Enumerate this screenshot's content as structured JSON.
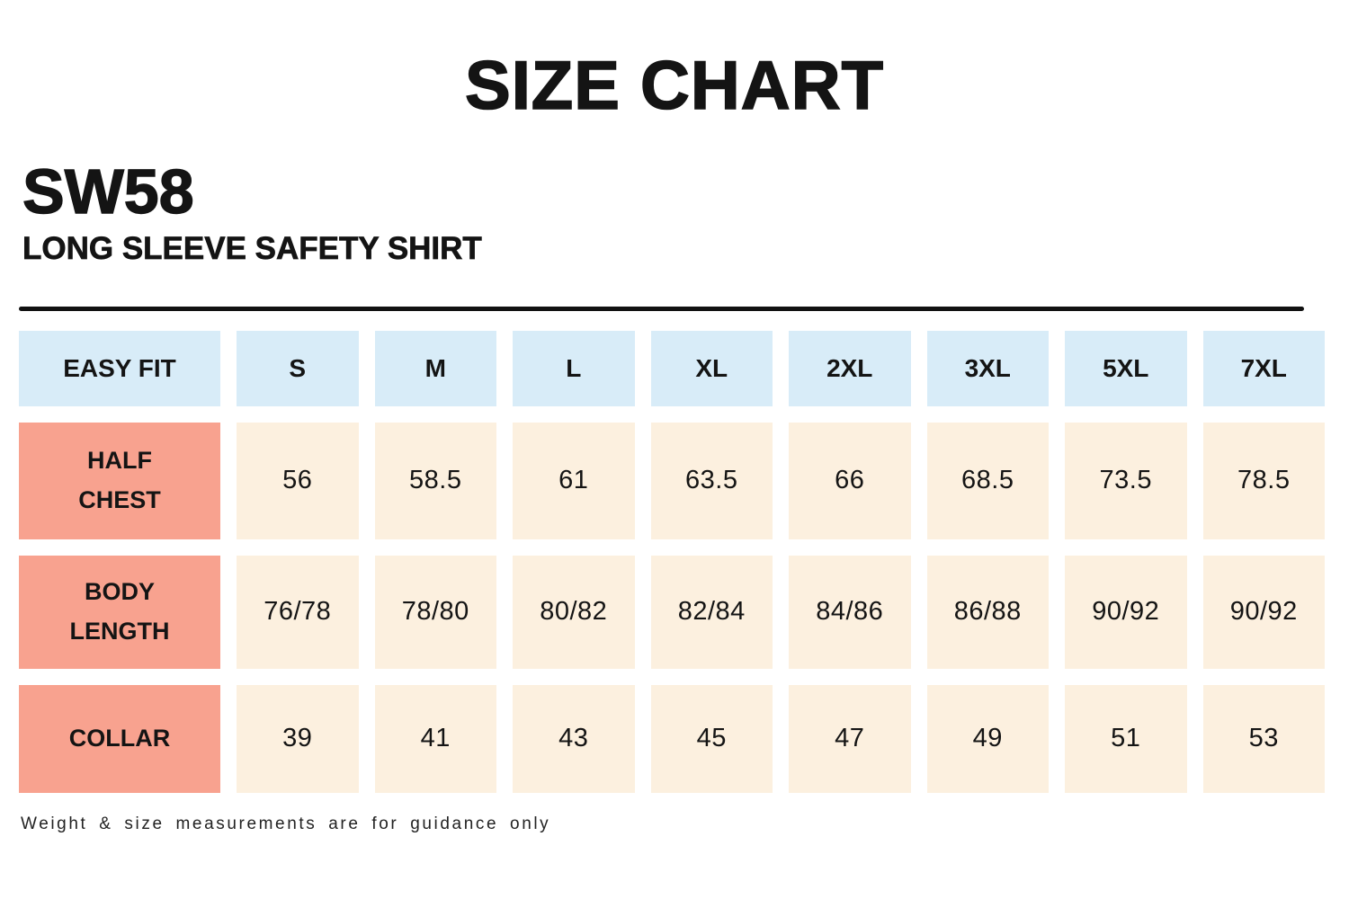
{
  "header": {
    "title": "SIZE CHART",
    "product_code": "SW58",
    "product_name": "LONG SLEEVE SAFETY SHIRT"
  },
  "footer": {
    "note": "Weight & size measurements are for guidance only"
  },
  "colors": {
    "size_header_bg": "#D8ECF8",
    "row_label_bg": "#F8A28F",
    "value_cell_bg": "#FCF0DF",
    "text": "#141414"
  },
  "chart_data": {
    "type": "table",
    "corner_label": "EASY FIT",
    "columns": [
      "S",
      "M",
      "L",
      "XL",
      "2XL",
      "3XL",
      "5XL",
      "7XL"
    ],
    "rows": [
      {
        "label": "HALF CHEST",
        "values": [
          "56",
          "58.5",
          "61",
          "63.5",
          "66",
          "68.5",
          "73.5",
          "78.5"
        ]
      },
      {
        "label": "BODY LENGTH",
        "values": [
          "76/78",
          "78/80",
          "80/82",
          "82/84",
          "84/86",
          "86/88",
          "90/92",
          "90/92"
        ]
      },
      {
        "label": "COLLAR",
        "values": [
          "39",
          "41",
          "43",
          "45",
          "47",
          "49",
          "51",
          "53"
        ]
      }
    ]
  }
}
